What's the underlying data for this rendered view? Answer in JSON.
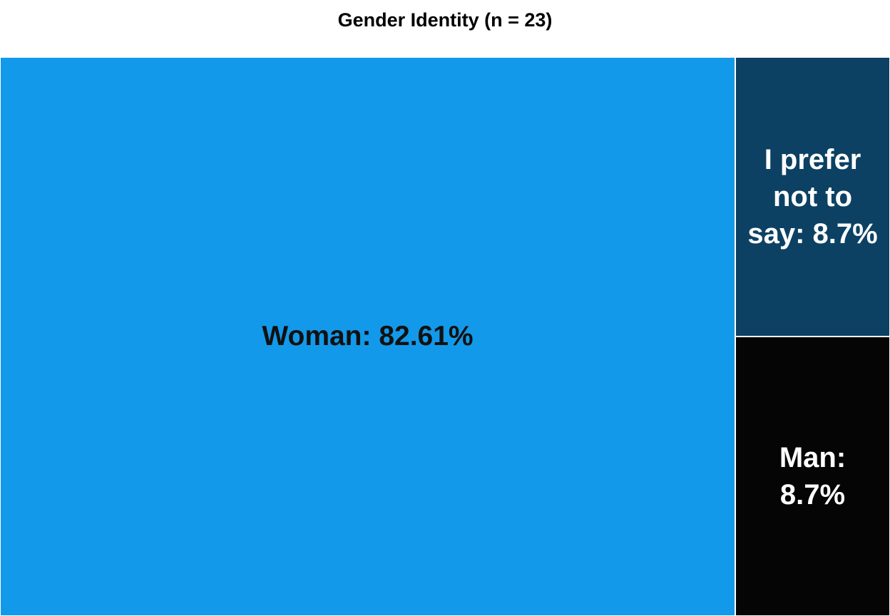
{
  "chart_data": {
    "type": "treemap",
    "title": "Gender Identity (n = 23)",
    "categories": [
      "Woman",
      "I prefer not to say",
      "Man"
    ],
    "values": [
      82.61,
      8.7,
      8.7
    ],
    "labels": [
      "Woman: 82.61%",
      "I prefer not to say: 8.7%",
      "Man: 8.7%"
    ],
    "colors": [
      "#1399EA",
      "#0C4163",
      "#050505"
    ],
    "label_colors": [
      "#111111",
      "#ffffff",
      "#ffffff"
    ]
  }
}
